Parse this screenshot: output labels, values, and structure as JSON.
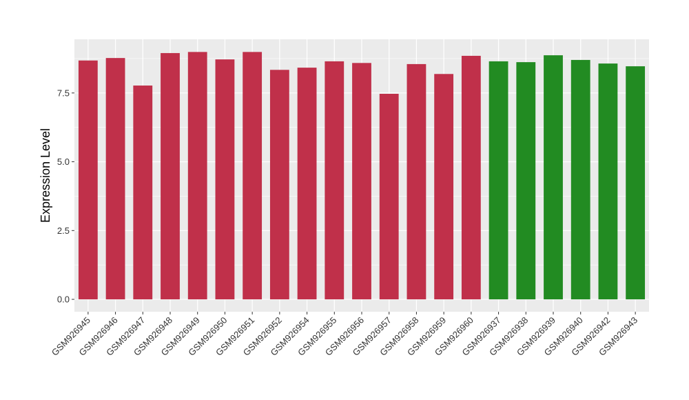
{
  "chart_data": {
    "type": "bar",
    "title": "",
    "xlabel": "",
    "ylabel": "Expression Level",
    "ylim": [
      -0.45,
      9.45
    ],
    "yticks": [
      0.0,
      2.5,
      5.0,
      7.5
    ],
    "ytick_labels": [
      "0.0",
      "2.5",
      "5.0",
      "7.5"
    ],
    "grid": true,
    "categories": [
      "GSM926945",
      "GSM926946",
      "GSM926947",
      "GSM926948",
      "GSM926949",
      "GSM926950",
      "GSM926951",
      "GSM926952",
      "GSM926954",
      "GSM926955",
      "GSM926956",
      "GSM926957",
      "GSM926958",
      "GSM926959",
      "GSM926960",
      "GSM926937",
      "GSM926938",
      "GSM926939",
      "GSM926940",
      "GSM926942",
      "GSM926943"
    ],
    "values": [
      8.68,
      8.77,
      7.77,
      8.95,
      8.99,
      8.72,
      8.99,
      8.34,
      8.42,
      8.65,
      8.59,
      7.47,
      8.55,
      8.19,
      8.85,
      8.65,
      8.62,
      8.87,
      8.7,
      8.57,
      8.47
    ],
    "colors": [
      "#C0304A",
      "#C0304A",
      "#C0304A",
      "#C0304A",
      "#C0304A",
      "#C0304A",
      "#C0304A",
      "#C0304A",
      "#C0304A",
      "#C0304A",
      "#C0304A",
      "#C0304A",
      "#C0304A",
      "#C0304A",
      "#C0304A",
      "#228B22",
      "#228B22",
      "#228B22",
      "#228B22",
      "#228B22",
      "#228B22"
    ],
    "panel_background": "#EBEBEB",
    "grid_color": "#FFFFFF"
  }
}
